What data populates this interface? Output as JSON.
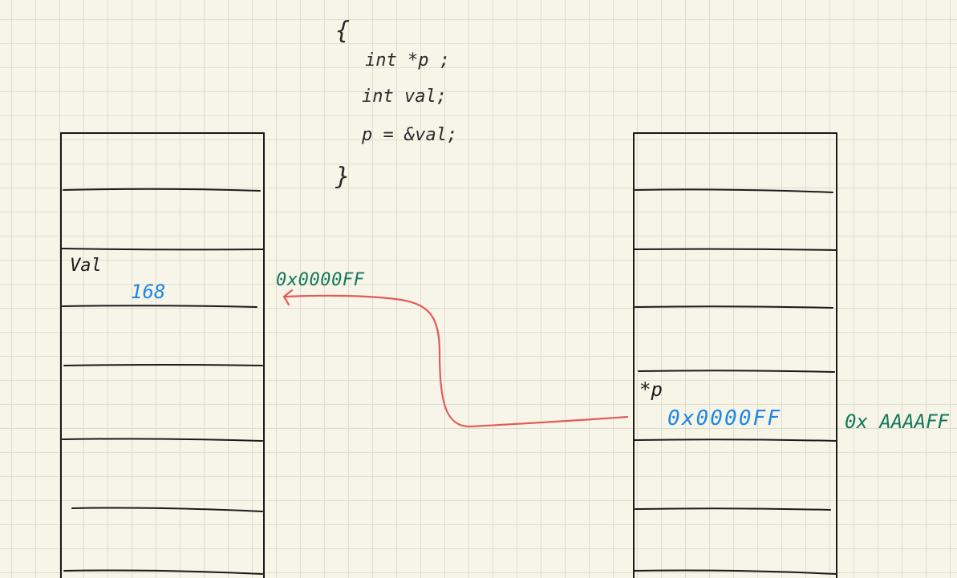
{
  "code": {
    "open_brace": "{",
    "line1": "int *p ;",
    "line2": "int val;",
    "line3": "p = &val;",
    "close_brace": "}"
  },
  "left_memory": {
    "var_name": "Val",
    "var_value": "168",
    "address": "0x0000FF"
  },
  "right_memory": {
    "var_name": "*p",
    "var_value": "0x0000FF",
    "address": "0x AAAAFF"
  },
  "colors": {
    "ink": "#222222",
    "value_blue": "#1e88e5",
    "address_green": "#13795b",
    "arrow_red": "#e35b5b"
  }
}
